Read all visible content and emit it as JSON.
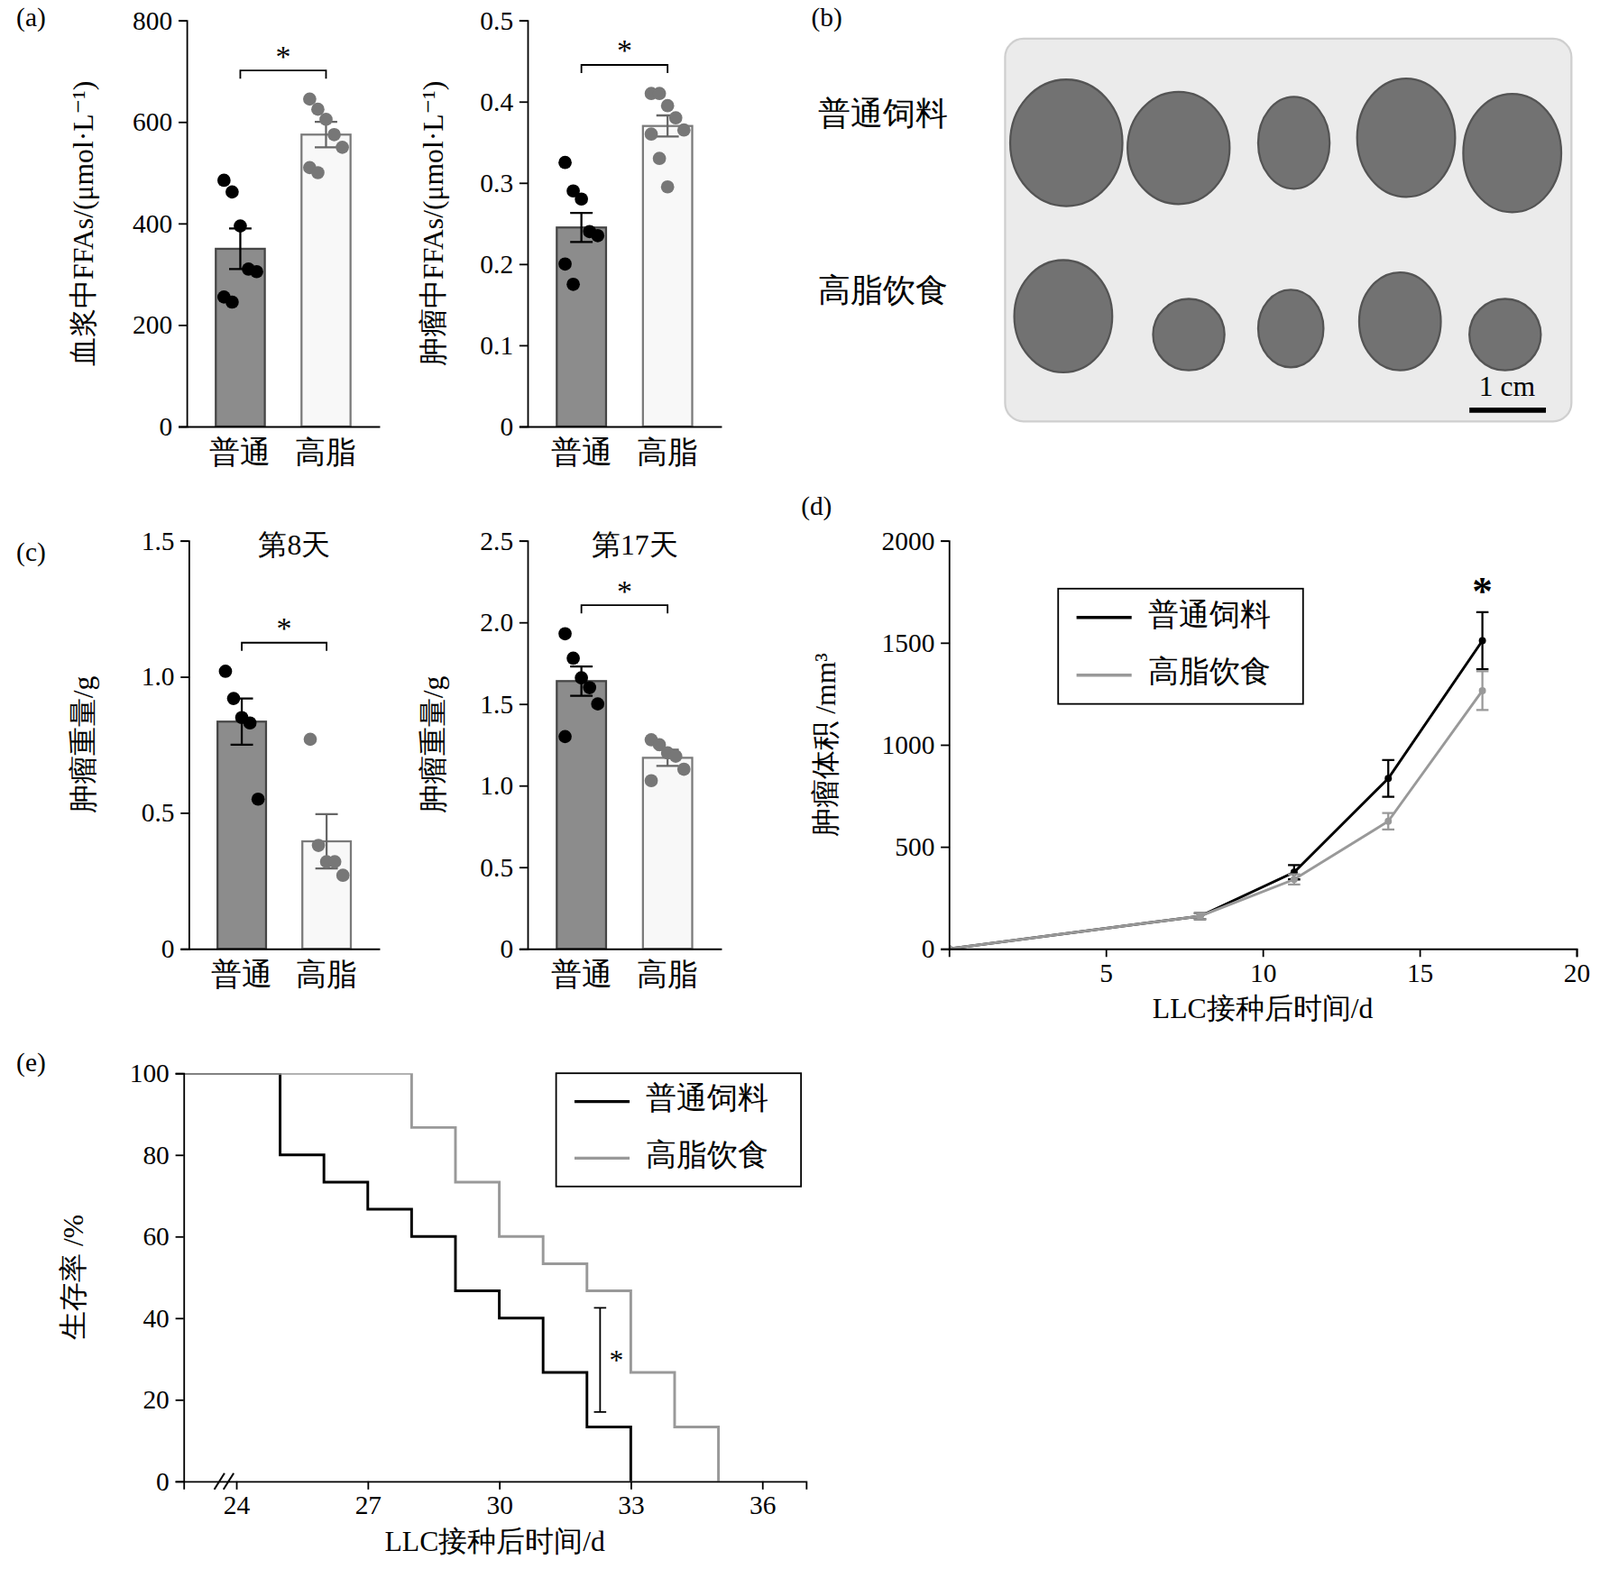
{
  "chart_data": [
    {
      "type": "bar",
      "panel": "(a)",
      "y_label": "血浆中FFAs/(μmol·L⁻¹)",
      "categories": [
        "普通",
        "高脂"
      ],
      "values": [
        350,
        575
      ],
      "errors": [
        40,
        25
      ],
      "points": [
        [
          485,
          462,
          395,
          310,
          305,
          255,
          245
        ],
        [
          645,
          625,
          605,
          575,
          550,
          510,
          500
        ]
      ],
      "colors": [
        "#8c8c8c",
        "#f8f8f8"
      ],
      "ylim": [
        0,
        800
      ],
      "yticks": [
        0,
        200,
        400,
        600,
        800
      ],
      "annotations": [
        {
          "text": "*",
          "between": [
            0,
            1
          ]
        }
      ]
    },
    {
      "type": "bar",
      "y_label": "肿瘤中FFAs/(μmol·L⁻¹)",
      "categories": [
        "普通",
        "高脂"
      ],
      "values": [
        0.245,
        0.37
      ],
      "errors": [
        0.018,
        0.013
      ],
      "points": [
        [
          0.325,
          0.29,
          0.28,
          0.24,
          0.235,
          0.2,
          0.175
        ],
        [
          0.41,
          0.41,
          0.395,
          0.38,
          0.365,
          0.36,
          0.33,
          0.295
        ]
      ],
      "colors": [
        "#8c8c8c",
        "#f8f8f8"
      ],
      "ylim": [
        0,
        0.5
      ],
      "yticks": [
        0,
        0.1,
        0.2,
        0.3,
        0.4,
        0.5
      ],
      "annotations": [
        {
          "text": "*",
          "between": [
            0,
            1
          ]
        }
      ]
    },
    {
      "type": "image",
      "panel": "(b)",
      "labels": [
        "普通饲料",
        "高脂饮食"
      ],
      "scale_bar": "1 cm"
    },
    {
      "type": "bar",
      "panel": "(c)",
      "title": "第8天",
      "y_label": "肿瘤重量/g",
      "categories": [
        "普通",
        "高脂"
      ],
      "values": [
        0.835,
        0.395
      ],
      "errors": [
        0.085,
        0.1
      ],
      "points": [
        [
          1.02,
          0.92,
          0.85,
          0.83,
          0.55
        ],
        [
          0.77,
          0.38,
          0.32,
          0.32,
          0.27
        ]
      ],
      "colors": [
        "#8c8c8c",
        "#f8f8f8"
      ],
      "ylim": [
        0,
        1.5
      ],
      "yticks": [
        0,
        0.5,
        {
          "value": 1,
          "label": "1.0"
        },
        1.5
      ],
      "annotations": [
        {
          "text": "*",
          "between": [
            0,
            1
          ]
        }
      ]
    },
    {
      "type": "bar",
      "title": "第17天",
      "y_label": "肿瘤重量/g",
      "categories": [
        "普通",
        "高脂"
      ],
      "values": [
        1.64,
        1.17
      ],
      "errors": [
        0.09,
        0.05
      ],
      "points": [
        [
          1.93,
          1.78,
          1.66,
          1.6,
          1.5,
          1.3
        ],
        [
          1.28,
          1.25,
          1.2,
          1.18,
          1.1,
          1.03
        ]
      ],
      "colors": [
        "#8c8c8c",
        "#f8f8f8"
      ],
      "ylim": [
        0,
        2.5
      ],
      "yticks": [
        0,
        0.5,
        {
          "value": 1,
          "label": "1.0"
        },
        1.5,
        {
          "value": 2,
          "label": "2.0"
        },
        2.5
      ],
      "annotations": [
        {
          "text": "*",
          "between": [
            0,
            1
          ]
        }
      ]
    },
    {
      "type": "line",
      "panel": "(d)",
      "x_label": "LLC接种后时间/d",
      "y_label": "肿瘤体积 /mm³",
      "x": [
        0,
        8,
        11,
        14,
        17
      ],
      "series": [
        {
          "name": "普通饲料",
          "color": "#000000",
          "values": [
            0,
            160,
            375,
            835,
            1510
          ],
          "errors": [
            0,
            15,
            35,
            90,
            140
          ]
        },
        {
          "name": "高脂饮食",
          "color": "#999999",
          "values": [
            0,
            160,
            340,
            625,
            1265
          ],
          "errors": [
            0,
            15,
            25,
            40,
            95
          ]
        }
      ],
      "xlim": [
        0,
        20
      ],
      "xticks": [
        5,
        10,
        15,
        20
      ],
      "ylim": [
        0,
        2000
      ],
      "yticks": [
        0,
        500,
        1000,
        1500,
        2000
      ],
      "legend": "upper left",
      "annotations": [
        {
          "text": "*",
          "x": 17
        }
      ]
    },
    {
      "type": "step",
      "panel": "(e)",
      "x_label": "LLC接种后时间/d",
      "y_label": "生存率 /%",
      "series": [
        {
          "name": "普通饲料",
          "color": "#000000",
          "x": [
            22.8,
            25,
            26,
            27,
            28,
            29,
            30,
            31,
            32,
            33
          ],
          "values": [
            100,
            80,
            73.3,
            66.7,
            60,
            46.7,
            40,
            26.7,
            13.3,
            0
          ]
        },
        {
          "name": "高脂饮食",
          "color": "#999999",
          "x": [
            22.8,
            28,
            29,
            30,
            31,
            32,
            33,
            34,
            35
          ],
          "values": [
            100,
            86.7,
            73.3,
            60,
            53.3,
            46.7,
            26.7,
            13.3,
            0
          ]
        }
      ],
      "xlim": [
        22.8,
        37
      ],
      "xticks": [
        24,
        27,
        30,
        33,
        36
      ],
      "ylim": [
        0,
        100
      ],
      "yticks": [
        0,
        20,
        40,
        60,
        80,
        100
      ],
      "legend": "upper right",
      "annotations": [
        {
          "text": "*",
          "x": 32.3,
          "y": [
            17,
            42.5
          ]
        }
      ]
    }
  ]
}
